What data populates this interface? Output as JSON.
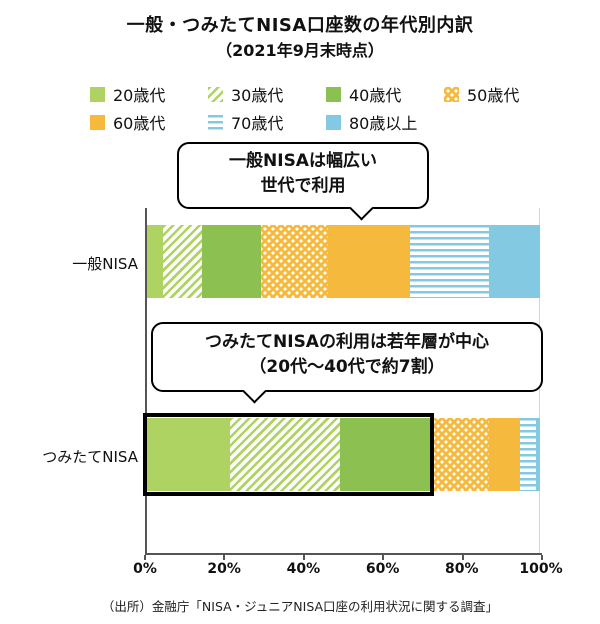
{
  "title": {
    "line1": "一般・つみたてNISA口座数の年代別内訳",
    "line2": "（2021年9月末時点）"
  },
  "legend": [
    {
      "label": "20歳代",
      "color": "#aed362",
      "pattern": "solid"
    },
    {
      "label": "30歳代",
      "color": "#aed362",
      "pattern": "diagonal"
    },
    {
      "label": "40歳代",
      "color": "#8cc152",
      "pattern": "solid"
    },
    {
      "label": "50歳代",
      "color": "#f5b93e",
      "pattern": "dots"
    },
    {
      "label": "60歳代",
      "color": "#f5b93e",
      "pattern": "solid"
    },
    {
      "label": "70歳代",
      "color": "#84c9e2",
      "pattern": "hlines"
    },
    {
      "label": "80歳以上",
      "color": "#84c9e2",
      "pattern": "solid"
    }
  ],
  "bubbles": [
    {
      "line1": "一般NISAは幅広い",
      "line2": "世代で利用"
    },
    {
      "line1": "つみたてNISAの利用は若年層が中心",
      "line2": "（20代～40代で約7割）"
    }
  ],
  "chart_data": {
    "type": "bar",
    "orientation": "horizontal",
    "stacked": true,
    "title": "一般・つみたてNISA口座数の年代別内訳（2021年9月末時点）",
    "xlabel": "",
    "ylabel": "",
    "xlim": [
      0,
      100
    ],
    "legend_position": "top",
    "grid": false,
    "series_labels": [
      "20歳代",
      "30歳代",
      "40歳代",
      "50歳代",
      "60歳代",
      "70歳代",
      "80歳以上"
    ],
    "rows": [
      {
        "label": "一般NISA",
        "values": [
          4,
          10,
          15,
          17,
          21,
          20,
          13
        ]
      },
      {
        "label": "つみたてNISA",
        "values": [
          21,
          28,
          23,
          15,
          8,
          4,
          1
        ]
      }
    ],
    "x_ticks": [
      "0%",
      "20%",
      "40%",
      "60%",
      "80%",
      "100%"
    ],
    "annotations": [
      "一般NISAは幅広い世代で利用",
      "つみたてNISAの利用は若年層が中心（20代～40代で約7割）"
    ],
    "highlight": {
      "row": "つみたてNISA",
      "from_pct": 0,
      "to_pct": 72
    }
  },
  "source": "（出所）金融庁「NISA・ジュニアNISA口座の利用状況に関する調査」"
}
